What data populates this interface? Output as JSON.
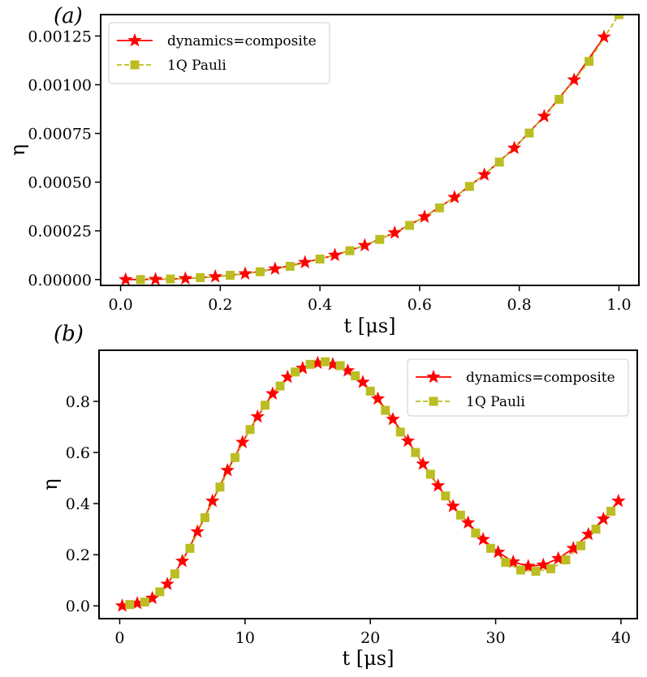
{
  "chart_data": [
    {
      "type": "line",
      "panel_label": "(a)",
      "xlabel": "t [μs]",
      "ylabel": "η",
      "xlim": [
        -0.04,
        1.04
      ],
      "ylim": [
        -3e-05,
        0.00136
      ],
      "xticks": [
        0.0,
        0.2,
        0.4,
        0.6,
        0.8,
        1.0
      ],
      "xtick_labels": [
        "0.0",
        "0.2",
        "0.4",
        "0.6",
        "0.8",
        "1.0"
      ],
      "yticks": [
        0.0,
        0.00025,
        0.0005,
        0.00075,
        0.001,
        0.00125
      ],
      "ytick_labels": [
        "0.00000",
        "0.00025",
        "0.00050",
        "0.00075",
        "0.00100",
        "0.00125"
      ],
      "legend_position": "top-left",
      "series": [
        {
          "name": "dynamics=composite",
          "color": "#ff0000",
          "marker": "star",
          "linestyle": "solid",
          "x": [
            0.01,
            0.07,
            0.13,
            0.19,
            0.25,
            0.31,
            0.37,
            0.43,
            0.49,
            0.55,
            0.61,
            0.67,
            0.73,
            0.79,
            0.85,
            0.91,
            0.97
          ],
          "y": [
            0.0,
            1e-06,
            5e-06,
            1.5e-05,
            3e-05,
            5.5e-05,
            8.8e-05,
            0.000125,
            0.000175,
            0.00024,
            0.000322,
            0.000422,
            0.000538,
            0.000675,
            0.000838,
            0.001025,
            0.001245
          ]
        },
        {
          "name": "1Q Pauli",
          "color": "#bcbd22",
          "marker": "square",
          "linestyle": "dashed",
          "x": [
            0.04,
            0.1,
            0.16,
            0.22,
            0.28,
            0.34,
            0.4,
            0.46,
            0.52,
            0.58,
            0.64,
            0.7,
            0.76,
            0.82,
            0.88,
            0.94,
            1.0
          ],
          "y": [
            0.0,
            3e-06,
            1e-05,
            2.2e-05,
            4e-05,
            6.8e-05,
            0.000105,
            0.000148,
            0.000206,
            0.000278,
            0.000368,
            0.000478,
            0.000603,
            0.000752,
            0.000925,
            0.00112,
            0.00136
          ]
        }
      ]
    },
    {
      "type": "line",
      "panel_label": "(b)",
      "xlabel": "t [μs]",
      "ylabel": "η",
      "xlim": [
        -1.65,
        41.3
      ],
      "ylim": [
        -0.05,
        1.0
      ],
      "xticks": [
        0,
        10,
        20,
        30,
        40
      ],
      "xtick_labels": [
        "0",
        "10",
        "20",
        "30",
        "40"
      ],
      "yticks": [
        0.0,
        0.2,
        0.4,
        0.6,
        0.8
      ],
      "ytick_labels": [
        "0.0",
        "0.2",
        "0.4",
        "0.6",
        "0.8"
      ],
      "legend_position": "top-right",
      "series": [
        {
          "name": "dynamics=composite",
          "color": "#ff0000",
          "marker": "star",
          "linestyle": "solid",
          "x": [
            0.2,
            1.4,
            2.6,
            3.8,
            5.0,
            6.2,
            7.4,
            8.6,
            9.8,
            11.0,
            12.2,
            13.4,
            14.6,
            15.8,
            17.0,
            18.2,
            19.4,
            20.6,
            21.8,
            23.0,
            24.2,
            25.4,
            26.6,
            27.8,
            29.0,
            30.2,
            31.4,
            32.6,
            33.8,
            35.0,
            36.2,
            37.4,
            38.6,
            39.8
          ],
          "y": [
            0.0,
            0.01,
            0.03,
            0.085,
            0.175,
            0.29,
            0.41,
            0.53,
            0.64,
            0.74,
            0.83,
            0.895,
            0.93,
            0.95,
            0.945,
            0.92,
            0.875,
            0.81,
            0.73,
            0.645,
            0.555,
            0.47,
            0.39,
            0.325,
            0.26,
            0.21,
            0.172,
            0.155,
            0.16,
            0.185,
            0.225,
            0.28,
            0.34,
            0.41
          ]
        },
        {
          "name": "1Q Pauli",
          "color": "#bcbd22",
          "marker": "square",
          "linestyle": "dashed",
          "x": [
            0.8,
            2.0,
            3.2,
            4.4,
            5.6,
            6.8,
            8.0,
            9.2,
            10.4,
            11.6,
            12.8,
            14.0,
            15.2,
            16.4,
            17.6,
            18.8,
            20.0,
            21.2,
            22.4,
            23.6,
            24.8,
            26.0,
            27.2,
            28.4,
            29.6,
            30.8,
            32.0,
            33.2,
            34.4,
            35.6,
            36.8,
            38.0,
            39.2
          ],
          "y": [
            0.005,
            0.015,
            0.055,
            0.125,
            0.225,
            0.345,
            0.465,
            0.58,
            0.69,
            0.785,
            0.86,
            0.915,
            0.945,
            0.955,
            0.94,
            0.9,
            0.84,
            0.765,
            0.68,
            0.6,
            0.515,
            0.43,
            0.355,
            0.285,
            0.225,
            0.17,
            0.14,
            0.135,
            0.145,
            0.18,
            0.235,
            0.3,
            0.37
          ]
        }
      ]
    }
  ]
}
